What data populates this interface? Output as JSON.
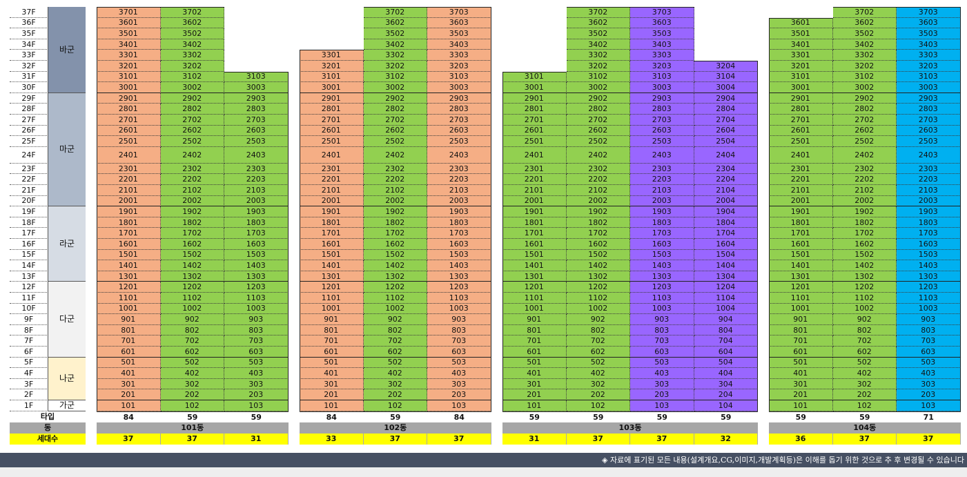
{
  "colors": {
    "orange": "#f5ae85",
    "green": "#92d050",
    "purple": "#9966ff",
    "cyan": "#00b0f0",
    "zone_바군": "#8392ab",
    "zone_마군": "#adb9ca",
    "zone_라군": "#d6dce4",
    "zone_다군": "#f2f2f2",
    "zone_나군": "#fff2cc",
    "zone_가군": "#ffffff",
    "dong_row": "#a6a6a6",
    "count_row": "#ffff00",
    "footer_bg": "#465063"
  },
  "floors": [
    "37F",
    "36F",
    "35F",
    "34F",
    "33F",
    "32F",
    "31F",
    "30F",
    "29F",
    "28F",
    "27F",
    "26F",
    "25F",
    "24F",
    "23F",
    "22F",
    "21F",
    "20F",
    "19F",
    "18F",
    "17F",
    "16F",
    "15F",
    "14F",
    "13F",
    "12F",
    "11F",
    "10F",
    "9F",
    "8F",
    "7F",
    "6F",
    "5F",
    "4F",
    "3F",
    "2F",
    "1F"
  ],
  "zones": [
    {
      "name": "바군",
      "color": "zone_바군",
      "from_floor": 37,
      "to_floor": 30
    },
    {
      "name": "마군",
      "color": "zone_마군",
      "from_floor": 29,
      "to_floor": 20
    },
    {
      "name": "라군",
      "color": "zone_라군",
      "from_floor": 19,
      "to_floor": 13
    },
    {
      "name": "다군",
      "color": "zone_다군",
      "from_floor": 12,
      "to_floor": 6
    },
    {
      "name": "나군",
      "color": "zone_나군",
      "from_floor": 5,
      "to_floor": 2
    },
    {
      "name": "가군",
      "color": "zone_가군",
      "from_floor": 1,
      "to_floor": 1
    }
  ],
  "row_labels": {
    "type": "타입",
    "dong": "동",
    "households": "세대수"
  },
  "buildings": [
    {
      "name": "101동",
      "columns": [
        {
          "line": "01",
          "top_floor": 37,
          "color": "orange",
          "type": "84",
          "households": "37"
        },
        {
          "line": "02",
          "top_floor": 37,
          "color": "green",
          "type": "59",
          "households": "37"
        },
        {
          "line": "03",
          "top_floor": 31,
          "color": "green",
          "type": "59",
          "households": "31"
        }
      ]
    },
    {
      "name": "102동",
      "columns": [
        {
          "line": "01",
          "top_floor": 33,
          "color": "orange",
          "type": "84",
          "households": "33"
        },
        {
          "line": "02",
          "top_floor": 37,
          "color": "green",
          "type": "59",
          "households": "37"
        },
        {
          "line": "03",
          "top_floor": 37,
          "color": "orange",
          "type": "84",
          "households": "37"
        }
      ]
    },
    {
      "name": "103동",
      "columns": [
        {
          "line": "01",
          "top_floor": 31,
          "color": "green",
          "type": "59",
          "households": "31"
        },
        {
          "line": "02",
          "top_floor": 37,
          "color": "green",
          "type": "59",
          "households": "37"
        },
        {
          "line": "03",
          "top_floor": 37,
          "color": "purple",
          "type": "59",
          "households": "37"
        },
        {
          "line": "04",
          "top_floor": 32,
          "color": "purple",
          "type": "59",
          "households": "32"
        }
      ]
    },
    {
      "name": "104동",
      "columns": [
        {
          "line": "01",
          "top_floor": 36,
          "color": "green",
          "type": "59",
          "households": "36"
        },
        {
          "line": "02",
          "top_floor": 37,
          "color": "green",
          "type": "59",
          "households": "37"
        },
        {
          "line": "03",
          "top_floor": 37,
          "color": "cyan",
          "type": "71",
          "households": "37"
        }
      ]
    }
  ],
  "footer": {
    "text": "◈  자료에 표기된 모든 내용(설계개요,CG,이미지,개발계획등)은 이해를 돕기 위한 것으로 추 후 변경될 수 있습니다"
  }
}
